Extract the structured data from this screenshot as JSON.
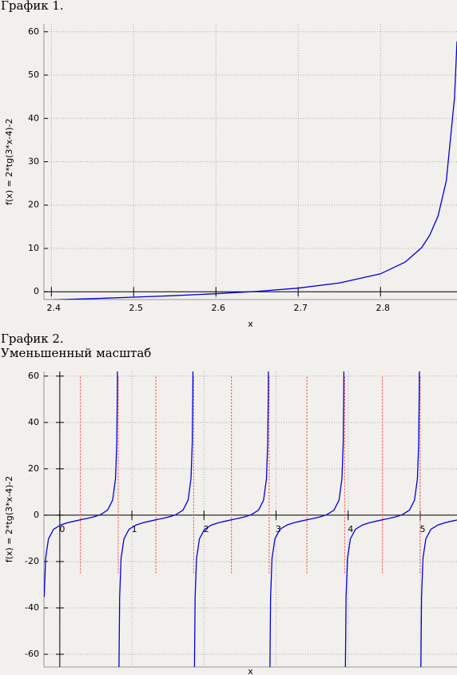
{
  "chart_data": [
    {
      "type": "line",
      "title": "График 1.",
      "xlabel": "x",
      "ylabel": "f(x) = 2*tg(3*x-4)-2",
      "x": [
        2.39,
        2.45,
        2.5,
        2.55,
        2.6,
        2.65,
        2.7,
        2.75,
        2.8,
        2.83,
        2.85,
        2.86,
        2.87,
        2.88,
        2.89,
        2.893
      ],
      "series": [
        {
          "color": "#0000e0",
          "values": [
            -1.94,
            -1.58,
            -1.25,
            -0.89,
            -0.45,
            0.09,
            0.84,
            2.02,
            4.14,
            6.84,
            10.18,
            13.1,
            17.5,
            25.6,
            44.8,
            57.8
          ]
        }
      ],
      "xlim": [
        2.391,
        2.893
      ],
      "ylim": [
        -1.8,
        61.8
      ],
      "xticks": [
        2.4,
        2.5,
        2.6,
        2.7,
        2.8
      ],
      "yticks": [
        0,
        10,
        20,
        30,
        40,
        50,
        60
      ],
      "grid": true
    },
    {
      "type": "line",
      "title": "График 2.",
      "subtitle": "Уменьшенный масштаб",
      "xlabel": "x",
      "ylabel": "f(x) = 2*tg(3*x-4)-2",
      "x": [
        -0.217,
        -0.197,
        -0.157,
        -0.087,
        0.013,
        0.113,
        0.213,
        0.283,
        0.363,
        0.463,
        0.563,
        0.663,
        0.733,
        0.773,
        0.79,
        0.798,
        0.8,
        null,
        0.82,
        0.83,
        0.85,
        0.89,
        0.96,
        1.06,
        1.16,
        1.26,
        1.33,
        1.41,
        1.51,
        1.61,
        1.71,
        1.78,
        1.82,
        1.837,
        1.845,
        1.847,
        null,
        1.867,
        1.877,
        1.897,
        1.937,
        2.007,
        2.107,
        2.207,
        2.307,
        2.377,
        2.457,
        2.557,
        2.657,
        2.757,
        2.827,
        2.867,
        2.884,
        2.892,
        2.894,
        null,
        2.914,
        2.924,
        2.944,
        2.984,
        3.054,
        3.154,
        3.254,
        3.354,
        3.424,
        3.504,
        3.604,
        3.704,
        3.804,
        3.874,
        3.914,
        3.931,
        3.939,
        3.941,
        null,
        3.961,
        3.971,
        3.991,
        4.031,
        4.101,
        4.201,
        4.301,
        4.401,
        4.471,
        4.551,
        4.651,
        4.751,
        4.851,
        4.921,
        4.961,
        4.978,
        4.986,
        4.988,
        null,
        5.008,
        5.018,
        5.038,
        5.078,
        5.148,
        5.248,
        5.348,
        5.448,
        5.51
      ],
      "series": [
        {
          "color": "#0000e0",
          "values": [
            -35.3,
            -18.6,
            -10.2,
            -6.1,
            -4.2,
            -3.2,
            -2.5,
            -2.0,
            -1.5,
            -0.8,
            0.2,
            2.2,
            6.5,
            15.8,
            30.8,
            52.6,
            63.3,
            null,
            -68.7,
            -35.3,
            -18.6,
            -10.2,
            -6.1,
            -4.2,
            -3.2,
            -2.5,
            -2.0,
            -1.5,
            -0.8,
            0.2,
            2.2,
            6.5,
            15.8,
            30.8,
            52.6,
            63.3,
            null,
            -68.7,
            -35.3,
            -18.6,
            -10.2,
            -6.1,
            -4.2,
            -3.2,
            -2.5,
            -2.0,
            -1.5,
            -0.8,
            0.2,
            2.2,
            6.5,
            15.8,
            30.8,
            52.6,
            63.3,
            null,
            -68.7,
            -35.3,
            -18.6,
            -10.2,
            -6.1,
            -4.2,
            -3.2,
            -2.5,
            -2.0,
            -1.5,
            -0.8,
            0.2,
            2.2,
            6.5,
            15.8,
            30.8,
            52.6,
            63.3,
            null,
            -68.7,
            -35.3,
            -18.6,
            -10.2,
            -6.1,
            -4.2,
            -3.2,
            -2.5,
            -2.0,
            -1.5,
            -0.8,
            0.2,
            2.2,
            6.5,
            15.8,
            30.8,
            52.6,
            63.3,
            null,
            -68.7,
            -35.3,
            -18.6,
            -10.2,
            -6.1,
            -4.2,
            -3.2,
            -2.5,
            -2.1
          ]
        }
      ],
      "reference_lines": [
        0.286,
        0.81,
        1.333,
        1.857,
        2.381,
        2.904,
        3.428,
        3.951,
        4.475,
        4.998,
        5.522
      ],
      "reference_span": [
        -25,
        60
      ],
      "reference_color": "#ff3030",
      "xlim": [
        -0.22,
        5.51
      ],
      "ylim": [
        -65.5,
        62
      ],
      "xticks": [
        0,
        1,
        2,
        3,
        4,
        5
      ],
      "yticks": [
        -60,
        -40,
        -20,
        0,
        20,
        40,
        60
      ],
      "grid": true
    }
  ]
}
